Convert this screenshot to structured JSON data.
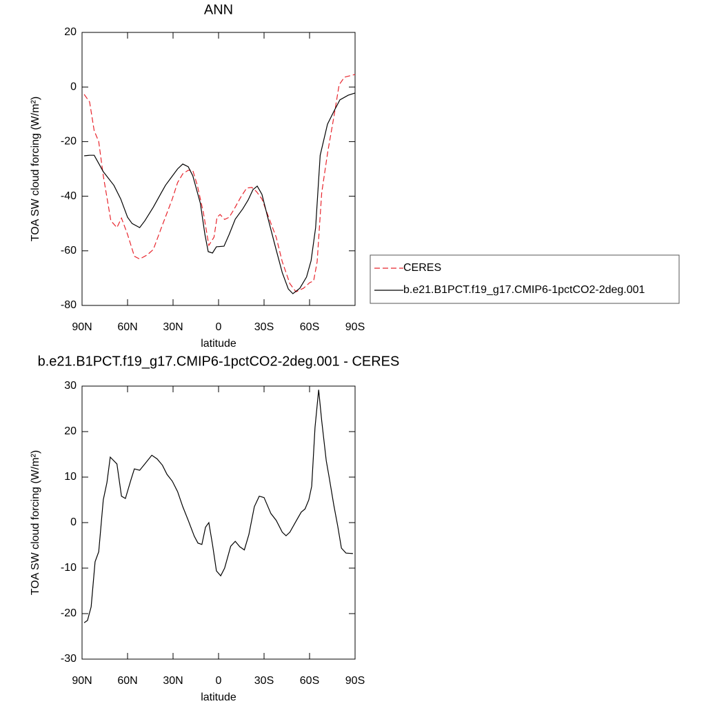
{
  "chart_data": [
    {
      "type": "line",
      "title": "ANN",
      "x_label": "latitude",
      "y_label": "TOA SW cloud forcing (W/m²)",
      "xlim": [
        90,
        -90
      ],
      "ylim": [
        -80,
        20
      ],
      "xticks": [
        {
          "value": 90,
          "label": "90N"
        },
        {
          "value": 60,
          "label": "60N"
        },
        {
          "value": 30,
          "label": "30N"
        },
        0,
        {
          "value": -30,
          "label": "30S"
        },
        {
          "value": -60,
          "label": "60S"
        },
        {
          "value": -90,
          "label": "90S"
        }
      ],
      "yticks": [
        -80,
        -60,
        -40,
        -20,
        0,
        20
      ],
      "legend": "right",
      "series": [
        {
          "name": "CERES",
          "color": "#e8242c",
          "line_style": "dashed",
          "x": [
            88.6,
            85,
            82,
            79,
            76,
            71,
            67,
            64,
            60,
            55.5,
            52,
            47,
            43,
            38,
            30.5,
            27,
            23.6,
            20,
            17,
            14,
            10,
            6.4,
            3,
            1,
            -1,
            -4,
            -7,
            -10,
            -15,
            -18.6,
            -22,
            -25,
            -28.6,
            -33,
            -38,
            -42,
            -47,
            -51,
            -56,
            -60,
            -62.7,
            -65,
            -68,
            -72,
            -76,
            -79.5,
            -83,
            -90
          ],
          "values": [
            -2.7,
            -5.5,
            -16,
            -20,
            -32.5,
            -49,
            -51.5,
            -48,
            -54,
            -62,
            -63,
            -61.5,
            -59.5,
            -52,
            -41,
            -35,
            -31.8,
            -30.5,
            -30.5,
            -36,
            -46,
            -58,
            -55,
            -47.7,
            -46.7,
            -48.5,
            -47.7,
            -45,
            -40,
            -37,
            -36.8,
            -38.3,
            -41,
            -47.7,
            -55,
            -64,
            -72,
            -75,
            -73.7,
            -71.7,
            -71,
            -64,
            -38.8,
            -23.7,
            -11,
            0.8,
            3.6,
            4.6
          ]
        },
        {
          "name": "b.e21.B1PCT.f19_g17.CMIP6-1pctCO2-2deg.001",
          "color": "#000000",
          "line_style": "solid",
          "x": [
            88.6,
            85,
            82,
            79,
            76,
            69,
            64.5,
            60,
            57,
            52,
            48.6,
            43,
            38,
            35,
            31,
            27,
            23.6,
            20,
            17,
            12,
            9,
            6.8,
            4,
            1.4,
            -3.6,
            -7,
            -11,
            -16,
            -19.5,
            -22.7,
            -25.5,
            -28.6,
            -33,
            -37.7,
            -42,
            -46,
            -49,
            -53.6,
            -58,
            -61,
            -64,
            -67,
            -71.8,
            -76.4,
            -80,
            -85.5,
            -90
          ],
          "values": [
            -25.2,
            -25,
            -25,
            -28,
            -31,
            -36,
            -41,
            -47.7,
            -50,
            -51.5,
            -49,
            -44,
            -39,
            -36,
            -33,
            -30,
            -28.2,
            -29.2,
            -32.5,
            -42.6,
            -54,
            -60.3,
            -60.8,
            -58.5,
            -58.3,
            -54,
            -48.4,
            -44.6,
            -41.4,
            -37.6,
            -36.3,
            -39.3,
            -49,
            -59,
            -68,
            -74,
            -75.7,
            -73.7,
            -69.6,
            -63.6,
            -51.5,
            -25,
            -13.6,
            -8.5,
            -4.7,
            -3,
            -2.2
          ]
        }
      ]
    },
    {
      "type": "line",
      "title": "b.e21.B1PCT.f19_g17.CMIP6-1pctCO2-2deg.001 - CERES",
      "x_label": "latitude",
      "y_label": "TOA SW cloud forcing (W/m²)",
      "xlim": [
        90,
        -90
      ],
      "ylim": [
        -30,
        30
      ],
      "xticks": [
        {
          "value": 90,
          "label": "90N"
        },
        {
          "value": 60,
          "label": "60N"
        },
        {
          "value": 30,
          "label": "30N"
        },
        0,
        {
          "value": -30,
          "label": "30S"
        },
        {
          "value": -60,
          "label": "60S"
        },
        {
          "value": -90,
          "label": "90S"
        }
      ],
      "yticks": [
        -30,
        -20,
        -10,
        0,
        10,
        20,
        30
      ],
      "series": [
        {
          "color": "#000000",
          "line_style": "solid",
          "x": [
            88.6,
            86.4,
            84,
            81.4,
            79,
            76,
            73.6,
            71.4,
            67,
            64,
            61.4,
            57.7,
            55.5,
            52,
            48.6,
            44,
            40.5,
            37,
            34,
            30.5,
            27,
            23.6,
            20,
            16,
            13.6,
            11,
            8.6,
            6.4,
            4,
            1.4,
            -1.4,
            -4,
            -8,
            -11,
            -14,
            -17,
            -20,
            -23.6,
            -26.8,
            -30,
            -34.5,
            -38,
            -42,
            -44.5,
            -47,
            -51.4,
            -54.5,
            -57,
            -59.5,
            -61.4,
            -63.6,
            -66,
            -68,
            -71,
            -73,
            -76,
            -78.6,
            -81,
            -84,
            -88.6
          ],
          "values": [
            -22,
            -21.5,
            -18.5,
            -8.6,
            -6.4,
            5,
            8.8,
            14.4,
            12.9,
            5.8,
            5.3,
            9.5,
            11.8,
            11.5,
            12.9,
            14.8,
            14,
            12.6,
            10.6,
            9.1,
            6.8,
            3.5,
            0.5,
            -3,
            -4.5,
            -4.8,
            -1,
            0,
            -4.8,
            -10.6,
            -11.7,
            -10,
            -5.2,
            -4.1,
            -5.3,
            -6,
            -2.6,
            3.5,
            5.8,
            5.5,
            2,
            0.5,
            -2.1,
            -2.9,
            -2.1,
            0.5,
            2.3,
            3,
            5,
            8,
            20.9,
            29.2,
            22.4,
            13.6,
            9.8,
            3.8,
            -0.8,
            -5.6,
            -6.7,
            -6.8
          ]
        }
      ]
    }
  ]
}
